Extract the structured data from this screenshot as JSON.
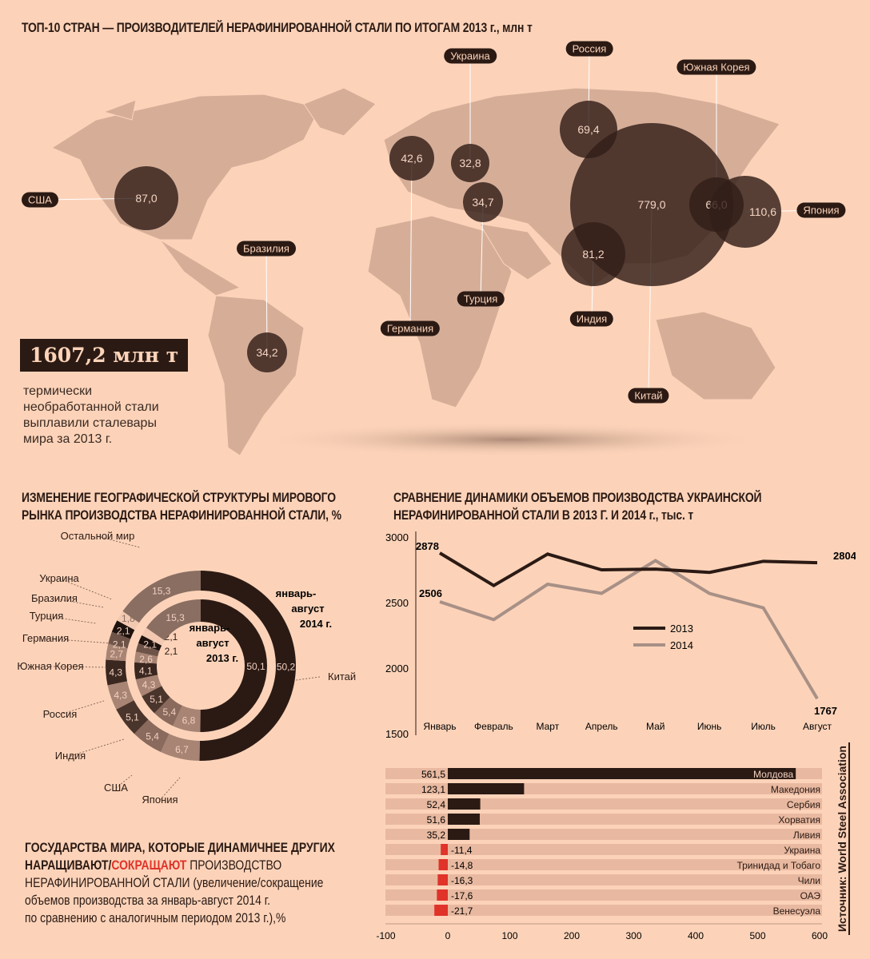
{
  "map": {
    "title": "ТОП-10 СТРАН — ПРОИЗВОДИТЕЛЕЙ НЕРАФИНИРОВАННОЙ СТАЛИ ПО ИТОГАМ 2013 г., млн т",
    "total": "1607,2 млн т",
    "total_desc": [
      "термически",
      "необработанной стали",
      "выплавили сталевары",
      "мира за 2013 г."
    ],
    "countries": [
      {
        "name": "США",
        "value": "87,0"
      },
      {
        "name": "Германия",
        "value": "42,6"
      },
      {
        "name": "Украина",
        "value": "32,8"
      },
      {
        "name": "Турция",
        "value": "34,7"
      },
      {
        "name": "Россия",
        "value": "69,4"
      },
      {
        "name": "Китай",
        "value": "779,0"
      },
      {
        "name": "Южная Корея",
        "value": "66,0"
      },
      {
        "name": "Япония",
        "value": "110,6"
      },
      {
        "name": "Индия",
        "value": "81,2"
      },
      {
        "name": "Бразилия",
        "value": "34,2"
      }
    ]
  },
  "chart_data": [
    {
      "type": "pie",
      "title": "ИЗМЕНЕНИЕ ГЕОГРАФИЧЕСКОЙ СТРУКТУРЫ МИРОВОГО РЫНКА ПРОИЗВОДСТВА НЕРАФИНИРОВАННОЙ СТАЛИ, %",
      "categories": [
        "Китай",
        "Япония",
        "США",
        "Индия",
        "Россия",
        "Южная Корея",
        "Германия",
        "Турция",
        "Бразилия",
        "Украина",
        "Остальной мир"
      ],
      "series": [
        {
          "name": "январь-август 2014 г.",
          "values": [
            50.2,
            6.7,
            5.4,
            5.1,
            4.3,
            4.3,
            2.7,
            2.1,
            2.1,
            1.8,
            15.3
          ],
          "labels": [
            "50,2",
            "6,7",
            "5,4",
            "5,1",
            "4,3",
            "4,3",
            "2,7",
            "2,1",
            "2,1",
            "1,8",
            "15,3"
          ]
        },
        {
          "name": "январь-август 2013 г.",
          "values": [
            50.1,
            6.8,
            5.4,
            5.1,
            4.3,
            4.1,
            2.6,
            2.1,
            2.1,
            2.1,
            15.3
          ],
          "labels": [
            "50,1",
            "6,8",
            "5,4",
            "5,1",
            "4,3",
            "4,1",
            "2,6",
            "2,1",
            "2,1",
            "2,1",
            "15,3"
          ]
        }
      ],
      "colors": [
        "#2b1a14",
        "#a88474",
        "#8a6a5c",
        "#4a352c",
        "#a88474",
        "#3a2720",
        "#a88474",
        "#6e5448",
        "#1e120e",
        "#f2c8b0",
        "#8a6e62"
      ],
      "outer_label": [
        "январь-",
        "август",
        "2014 г."
      ],
      "inner_label": [
        "январь-",
        "август",
        "2013 г."
      ]
    },
    {
      "type": "line",
      "title": "СРАВНЕНИЕ ДИНАМИКИ ОБЪЕМОВ ПРОИЗВОДСТВА УКРАИНСКОЙ НЕРАФИНИРОВАННОЙ СТАЛИ В 2013 Г. И 2014 г., тыс. т",
      "categories": [
        "Январь",
        "Февраль",
        "Март",
        "Апрель",
        "Май",
        "Июнь",
        "Июль",
        "Август"
      ],
      "series": [
        {
          "name": "2013",
          "values": [
            2878,
            2630,
            2870,
            2750,
            2755,
            2730,
            2815,
            2804
          ],
          "color": "#2b1a14"
        },
        {
          "name": "2014",
          "values": [
            2506,
            2370,
            2640,
            2570,
            2820,
            2570,
            2460,
            1767
          ],
          "color": "#a89086"
        }
      ],
      "annotations": [
        "2878",
        "2804",
        "2506",
        "1767"
      ],
      "ylim": [
        1500,
        3000
      ],
      "yticks": [
        "3000",
        "2500",
        "2000",
        "1500"
      ]
    },
    {
      "type": "bar",
      "title": "ГОСУДАРСТВА МИРА, КОТОРЫЕ ДИНАМИЧНЕЕ ДРУГИХ НАРАЩИВАЮТ/СОКРАЩАЮТ ПРОИЗВОДСТВО НЕРАФИНИРОВАННОЙ СТАЛИ",
      "title_parts": [
        "ГОСУДАРСТВА МИРА, КОТОРЫЕ ДИНАМИЧНЕЕ ДРУГИХ",
        "НАРАЩИВАЮТ",
        "/",
        "СОКРАЩАЮТ",
        " ПРОИЗВОДСТВО",
        "НЕРАФИНИРОВАННОЙ СТАЛИ",
        " (увеличение/сокращение",
        "объемов производства за январь-август 2014 г.",
        "по сравнению с аналогичным периодом 2013 г.),%"
      ],
      "categories": [
        "Молдова",
        "Македония",
        "Сербия",
        "Хорватия",
        "Ливия",
        "Украина",
        "Тринидад и Тобаго",
        "Чили",
        "ОАЭ",
        "Венесуэла"
      ],
      "values": [
        561.5,
        123.1,
        52.4,
        51.6,
        35.2,
        -11.4,
        -14.8,
        -16.3,
        -17.6,
        -21.7
      ],
      "labels": [
        "561,5",
        "123,1",
        "52,4",
        "51,6",
        "35,2",
        "-11,4",
        "-14,8",
        "-16,3",
        "-17,6",
        "-21,7"
      ],
      "xlim": [
        -100,
        600
      ],
      "xticks": [
        "-100",
        "0",
        "100",
        "200",
        "300",
        "400",
        "500",
        "600"
      ],
      "colors": {
        "positive": "#2b1a14",
        "negative": "#e0332a",
        "track": "#e8b9a0"
      }
    }
  ],
  "source": "Источник: World Steel Association"
}
